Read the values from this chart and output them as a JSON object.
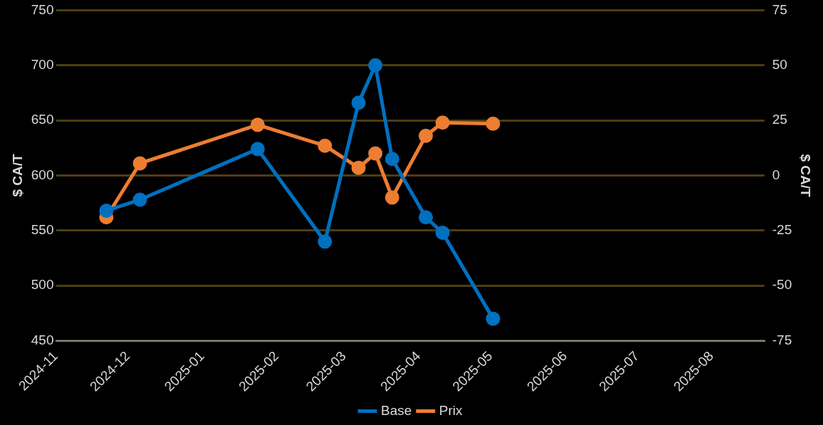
{
  "chart_data": {
    "type": "line",
    "ylabel": "$ CA/T",
    "y2label": "$ CA/T",
    "x": [
      "2024-11-22",
      "2024-12-06",
      "2025-01-24",
      "2025-02-21",
      "2025-03-07",
      "2025-03-14",
      "2025-03-21",
      "2025-04-04",
      "2025-04-11",
      "2025-05-02"
    ],
    "series": [
      {
        "name": "Prix",
        "color": "#ed7d31",
        "values": [
          562,
          611,
          646,
          627,
          607,
          620,
          580,
          636,
          648,
          647
        ]
      },
      {
        "name": "Base",
        "color": "#0070c0",
        "axis": "y2",
        "values": [
          -16,
          -11,
          12,
          -30,
          33,
          50,
          7.5,
          -19,
          -26,
          -65
        ]
      }
    ],
    "xlim": [
      "2024-11-01",
      "2025-08-23"
    ],
    "xticks": [
      {
        "value": "2024-11-01",
        "label": "2024-11"
      },
      {
        "value": "2024-12-01",
        "label": "2024-12"
      },
      {
        "value": "2025-01-01",
        "label": "2025-01"
      },
      {
        "value": "2025-02-01",
        "label": "2025-02"
      },
      {
        "value": "2025-03-01",
        "label": "2025-03"
      },
      {
        "value": "2025-04-01",
        "label": "2025-04"
      },
      {
        "value": "2025-05-01",
        "label": "2025-05"
      },
      {
        "value": "2025-06-01",
        "label": "2025-06"
      },
      {
        "value": "2025-07-01",
        "label": "2025-07"
      },
      {
        "value": "2025-08-01",
        "label": "2025-08"
      }
    ],
    "ylim": [
      450,
      750
    ],
    "yticks": [
      450,
      500,
      550,
      600,
      650,
      700,
      750
    ],
    "y2lim": [
      -75,
      75
    ],
    "y2ticks": [
      -75,
      -50,
      -25,
      0,
      25,
      50,
      75
    ],
    "grid": "y",
    "legend": "bottom",
    "marker": "circle",
    "line_style": "solid"
  }
}
